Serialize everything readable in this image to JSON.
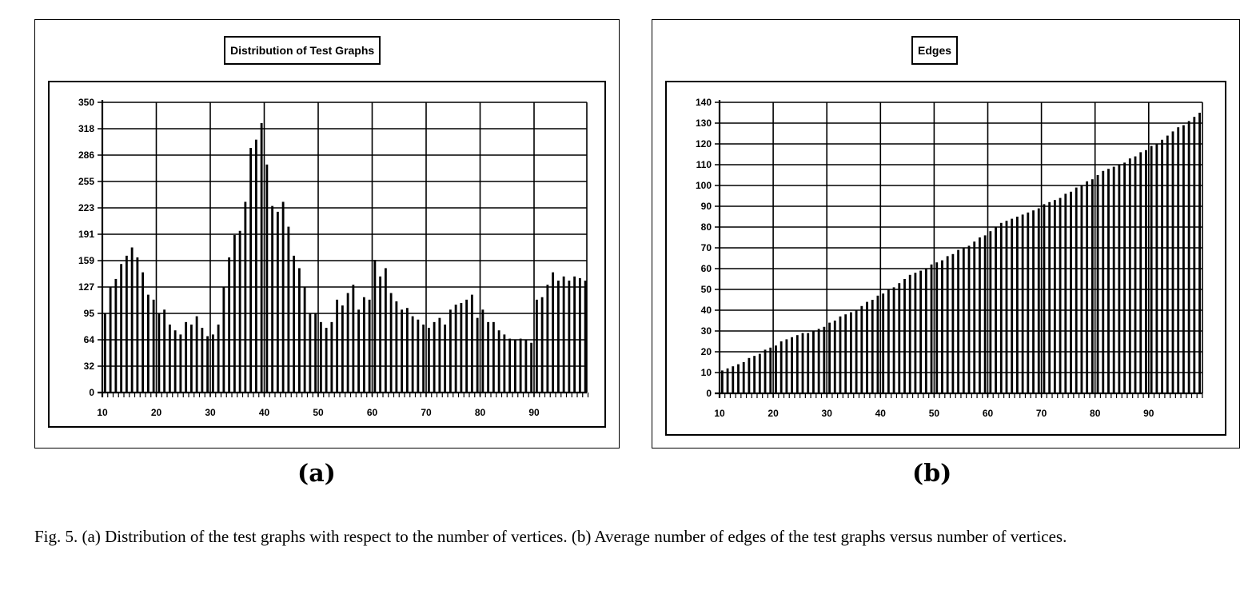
{
  "chart_data": [
    {
      "type": "bar",
      "title": "Distribution of Test Graphs",
      "panel_label": "(a)",
      "x_ticks": [
        "10",
        "20",
        "30",
        "40",
        "50",
        "60",
        "70",
        "80",
        "90"
      ],
      "y_ticks": [
        "0",
        "32",
        "64",
        "95",
        "127",
        "159",
        "191",
        "223",
        "255",
        "286",
        "318",
        "350"
      ],
      "ylim": [
        0,
        350
      ],
      "xlim": [
        10,
        100
      ],
      "grid": true,
      "x": [
        10,
        11,
        12,
        13,
        14,
        15,
        16,
        17,
        18,
        19,
        20,
        21,
        22,
        23,
        24,
        25,
        26,
        27,
        28,
        29,
        30,
        31,
        32,
        33,
        34,
        35,
        36,
        37,
        38,
        39,
        40,
        41,
        42,
        43,
        44,
        45,
        46,
        47,
        48,
        49,
        50,
        51,
        52,
        53,
        54,
        55,
        56,
        57,
        58,
        59,
        60,
        61,
        62,
        63,
        64,
        65,
        66,
        67,
        68,
        69,
        70,
        71,
        72,
        73,
        74,
        75,
        76,
        77,
        78,
        79,
        80,
        81,
        82,
        83,
        84,
        85,
        86,
        87,
        88,
        89,
        90,
        91,
        92,
        93,
        94,
        95,
        96,
        97,
        98,
        99
      ],
      "values": [
        95,
        127,
        137,
        155,
        165,
        175,
        163,
        145,
        118,
        112,
        95,
        100,
        82,
        75,
        70,
        85,
        82,
        92,
        78,
        68,
        70,
        82,
        127,
        163,
        190,
        195,
        230,
        295,
        305,
        325,
        275,
        225,
        218,
        230,
        200,
        165,
        150,
        127,
        95,
        95,
        85,
        78,
        85,
        112,
        105,
        120,
        130,
        100,
        115,
        112,
        160,
        140,
        150,
        120,
        110,
        100,
        102,
        92,
        88,
        82,
        78,
        85,
        90,
        82,
        100,
        106,
        108,
        112,
        118,
        90,
        100,
        85,
        85,
        75,
        70,
        65,
        64,
        65,
        64,
        60,
        112,
        115,
        130,
        145,
        135,
        140,
        135,
        140,
        138,
        135
      ]
    },
    {
      "type": "bar",
      "title": "Edges",
      "panel_label": "(b)",
      "x_ticks": [
        "10",
        "20",
        "30",
        "40",
        "50",
        "60",
        "70",
        "80",
        "90"
      ],
      "y_ticks": [
        "0",
        "10",
        "20",
        "30",
        "40",
        "50",
        "60",
        "70",
        "80",
        "90",
        "100",
        "110",
        "120",
        "130",
        "140"
      ],
      "ylim": [
        0,
        140
      ],
      "xlim": [
        10,
        100
      ],
      "grid": true,
      "x": [
        10,
        11,
        12,
        13,
        14,
        15,
        16,
        17,
        18,
        19,
        20,
        21,
        22,
        23,
        24,
        25,
        26,
        27,
        28,
        29,
        30,
        31,
        32,
        33,
        34,
        35,
        36,
        37,
        38,
        39,
        40,
        41,
        42,
        43,
        44,
        45,
        46,
        47,
        48,
        49,
        50,
        51,
        52,
        53,
        54,
        55,
        56,
        57,
        58,
        59,
        60,
        61,
        62,
        63,
        64,
        65,
        66,
        67,
        68,
        69,
        70,
        71,
        72,
        73,
        74,
        75,
        76,
        77,
        78,
        79,
        80,
        81,
        82,
        83,
        84,
        85,
        86,
        87,
        88,
        89,
        90,
        91,
        92,
        93,
        94,
        95,
        96,
        97,
        98,
        99
      ],
      "values": [
        11,
        12,
        13,
        14,
        15,
        17,
        18,
        19,
        21,
        22,
        23,
        25,
        26,
        27,
        28,
        29,
        29,
        30,
        31,
        32,
        34,
        35,
        37,
        38,
        39,
        40,
        42,
        44,
        45,
        47,
        48,
        50,
        51,
        53,
        55,
        57,
        58,
        59,
        60,
        62,
        63,
        64,
        66,
        67,
        69,
        70,
        71,
        73,
        75,
        76,
        78,
        80,
        82,
        83,
        84,
        85,
        86,
        87,
        88,
        89,
        91,
        92,
        93,
        94,
        96,
        97,
        99,
        100,
        102,
        103,
        105,
        107,
        108,
        109,
        110,
        111,
        113,
        114,
        116,
        117,
        119,
        120,
        122,
        124,
        126,
        128,
        129,
        131,
        133,
        135
      ]
    }
  ],
  "caption": "Fig. 5. (a) Distribution of the test graphs with respect to the number of vertices. (b) Average number of edges of the test graphs versus number of vertices."
}
